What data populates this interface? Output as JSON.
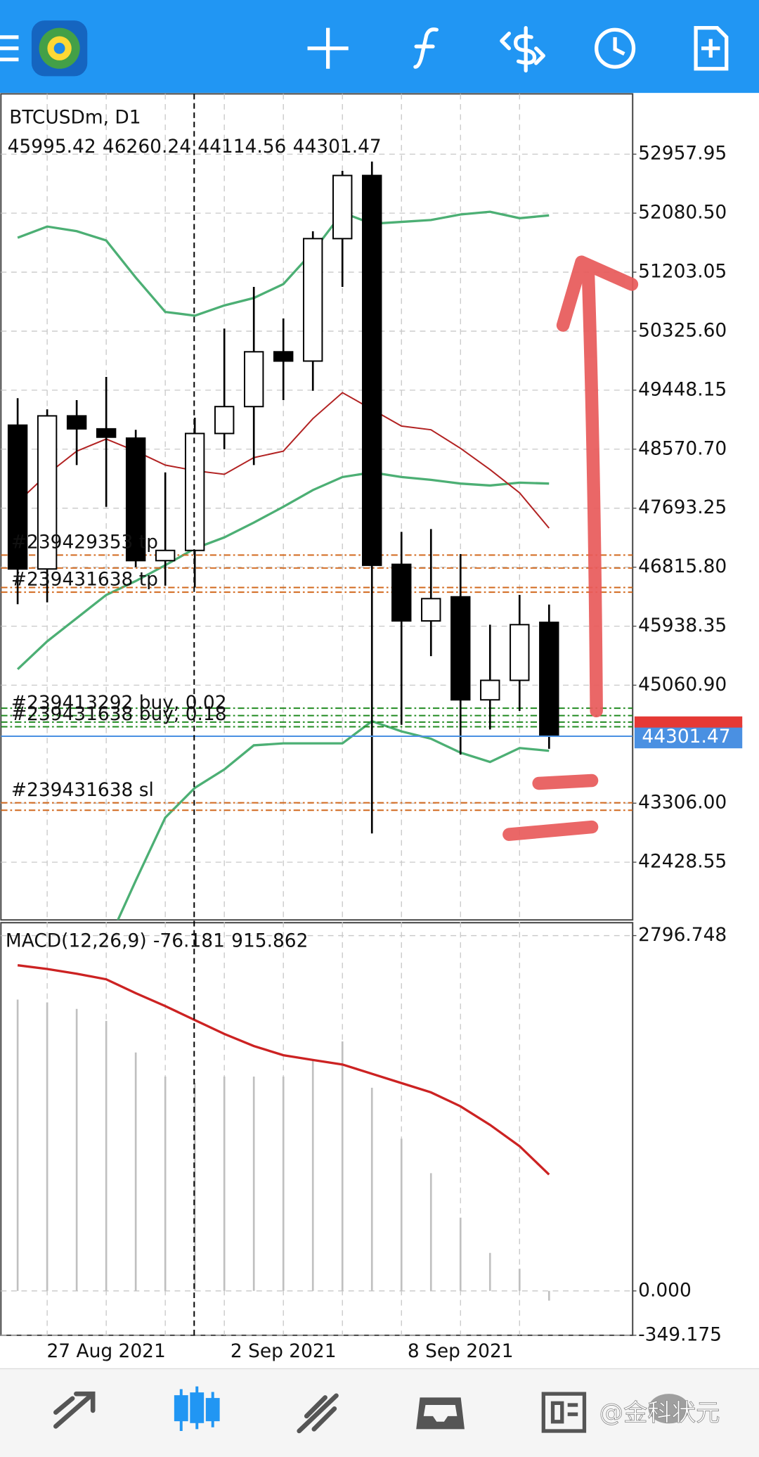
{
  "chart_data": [
    {
      "type": "candlestick",
      "title": "BTCUSDm, D1",
      "categories": [
        null,
        null,
        null,
        "27 Aug 2021",
        null,
        null,
        null,
        null,
        null,
        "2 Sep 2021",
        null,
        null,
        null,
        null,
        null,
        "8 Sep 2021",
        null,
        null,
        null
      ],
      "open": [
        48928,
        46789,
        49066,
        48873,
        48735,
        46913,
        47065,
        48804,
        49204,
        50019,
        49881,
        51702,
        52641,
        46858,
        46017,
        46375,
        44843,
        45133,
        45995.42
      ],
      "high": [
        49329,
        49163,
        49301,
        49646,
        48859,
        48225,
        49039,
        50364,
        50984,
        50515,
        51812,
        52710,
        52848,
        47341,
        47383,
        47010,
        45961,
        46403,
        46260.24
      ],
      "low": [
        46265,
        46293,
        48335,
        47714,
        46817,
        46541,
        46513,
        48570,
        48335,
        49301,
        49439,
        50984,
        42856,
        44471,
        45492,
        44029,
        44402,
        44678,
        44114.56
      ],
      "close": [
        46789,
        49066,
        48873,
        48749,
        46913,
        47065,
        48804,
        49204,
        50019,
        49881,
        51702,
        52641,
        46844,
        46017,
        46348,
        44843,
        45133,
        45961,
        44301.47
      ],
      "lines": [
        {
          "color": "#4caf74",
          "values": [
            51716,
            51882,
            51813,
            51675,
            51123,
            50612,
            50557,
            50709,
            50819,
            51026,
            51509,
            52089,
            51923,
            51951,
            51978,
            52061,
            52102,
            52006,
            52047
          ]
        },
        {
          "color": "#4caf74",
          "values": [
            45299,
            45713,
            46058,
            46403,
            46610,
            46845,
            47093,
            47259,
            47479,
            47714,
            47962,
            48156,
            48225,
            48156,
            48114,
            48059,
            48031,
            48073,
            48059
          ]
        },
        {
          "color": "#4caf74",
          "values": [
            null,
            null,
            null,
            41186,
            42153,
            43091,
            43533,
            43809,
            44167,
            44195,
            44195,
            44195,
            44526,
            44374,
            44264,
            44057,
            43919,
            44126,
            44085
          ]
        },
        {
          "color": "#b22222",
          "values": [
            47783,
            48197,
            48542,
            48721,
            48542,
            48335,
            48252,
            48197,
            48445,
            48542,
            49025,
            49411,
            49163,
            48915,
            48859,
            48583,
            48266,
            47921,
            47397
          ]
        }
      ],
      "orders": [
        {
          "label": "#239429353 tp",
          "price": 46996,
          "color": "#d2691e"
        },
        {
          "price": 46803,
          "color": "#d2691e"
        },
        {
          "price": 46513,
          "color": "#d2691e"
        },
        {
          "label": "#239431638 tp",
          "price": 46444,
          "color": "#d2691e"
        },
        {
          "price": 44719,
          "color": "#228b22"
        },
        {
          "label": "#239413292 buy, 0.02",
          "price": 44609,
          "color": "#228b22"
        },
        {
          "price": 44512,
          "color": "#228b22"
        },
        {
          "label": "#239431638 buy, 0.18",
          "price": 44443,
          "color": "#228b22"
        },
        {
          "label": "#239431638 sl",
          "price": 43312,
          "color": "#d2691e"
        },
        {
          "price": 43201,
          "color": "#d2691e"
        }
      ],
      "bid_color": "#4a90e2",
      "ylim": [
        41570,
        53855
      ],
      "yticks": [
        52957.95,
        {
          "value": 52080.5,
          "label": "52080.50"
        },
        51203.05,
        {
          "value": 50325.6,
          "label": "50325.60"
        },
        49448.15,
        {
          "value": 48570.7,
          "label": "48570.70"
        },
        47693.25,
        {
          "value": 46815.8,
          "label": "46815.80"
        },
        45938.35,
        {
          "value": 45060.9,
          "label": "45060.90"
        },
        {
          "value": 43306,
          "label": "43306.00"
        },
        42428.55
      ],
      "grid": true
    },
    {
      "type": "macd",
      "title": "MACD(12,26,9)",
      "histogram": [
        2293,
        2271,
        2220,
        2125,
        1877,
        1687,
        1636,
        1687,
        1687,
        1687,
        1818,
        1964,
        1599,
        1198,
        927,
        577,
        299,
        175,
        -76.181
      ],
      "histogram_color": "#c0c0c0",
      "signal": [
        2563,
        2534,
        2497,
        2453,
        2344,
        2242,
        2132,
        2023,
        1928,
        1855,
        1818,
        1782,
        1709,
        1636,
        1563,
        1453,
        1307,
        1139,
        915.862
      ],
      "signal_color": "#cc2222",
      "ylim": [
        -349.175,
        2891
      ],
      "yticks": [
        2796.748,
        {
          "value": 0,
          "label": "0.000"
        },
        -349.175
      ],
      "grid": true
    }
  ],
  "bottom_nav": {
    "watermark": "@金科状元"
  }
}
